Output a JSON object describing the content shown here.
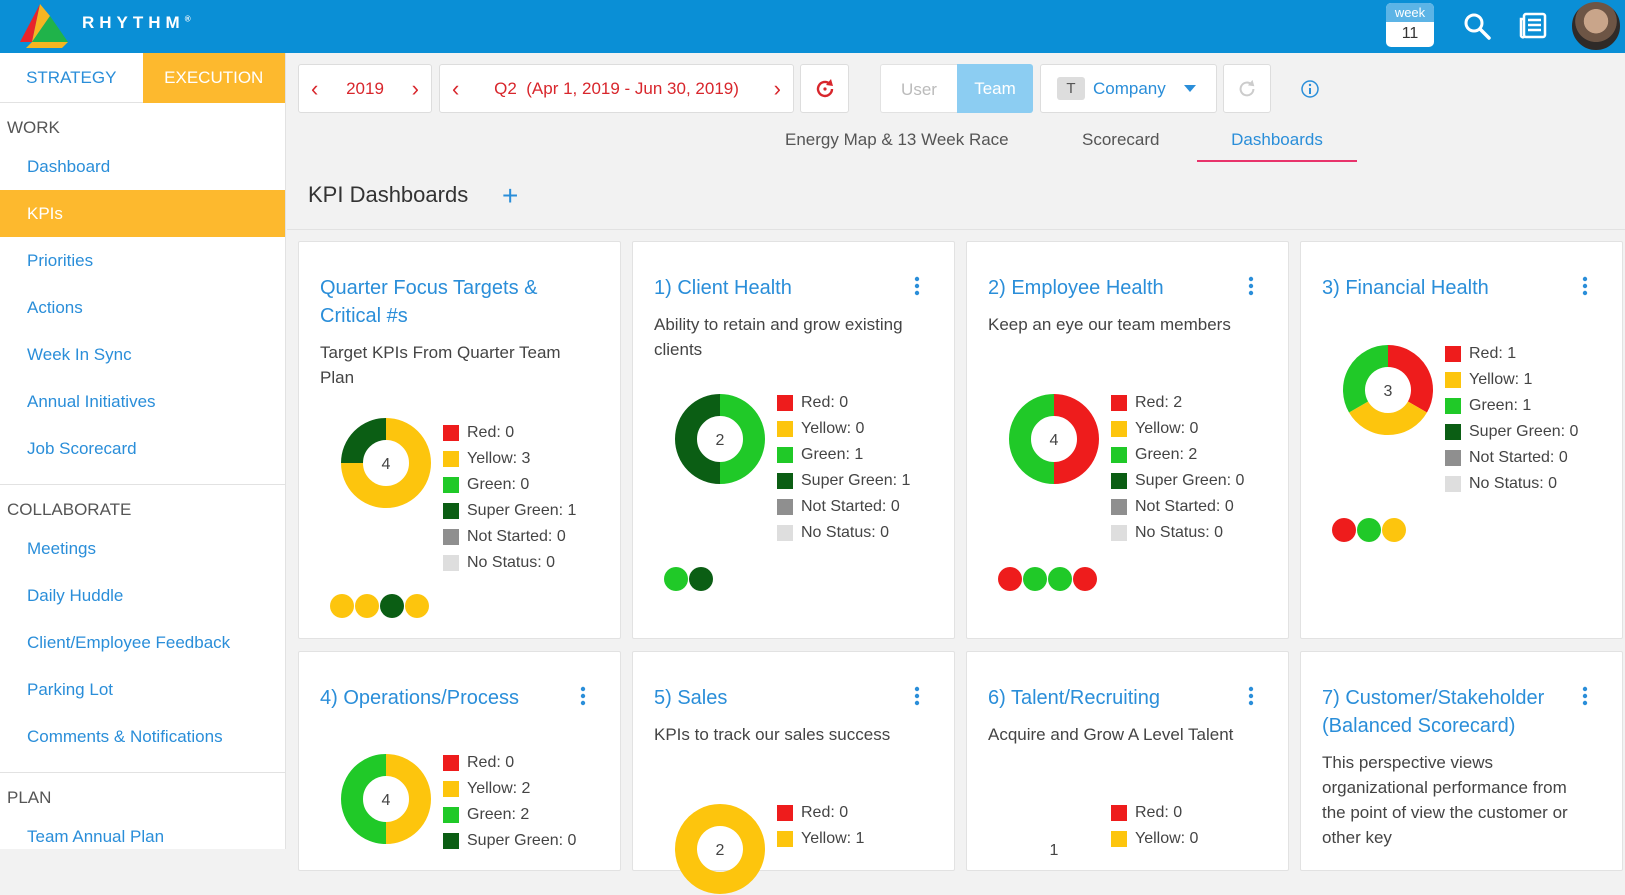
{
  "header": {
    "brand": "RHYTHM",
    "brand_mark": "®",
    "week_label": "week",
    "week_number": "11"
  },
  "sidebar": {
    "tabs": [
      "STRATEGY",
      "EXECUTION"
    ],
    "sections": [
      {
        "title": "WORK",
        "items": [
          "Dashboard",
          "KPIs",
          "Priorities",
          "Actions",
          "Week In Sync",
          "Annual Initiatives",
          "Job Scorecard"
        ]
      },
      {
        "title": "COLLABORATE",
        "items": [
          "Meetings",
          "Daily Huddle",
          "Client/Employee Feedback",
          "Parking Lot",
          "Comments & Notifications"
        ]
      },
      {
        "title": "PLAN",
        "items": [
          "Team Annual Plan"
        ]
      }
    ]
  },
  "controls": {
    "year": "2019",
    "quarter": "Q2",
    "quarter_range": "(Apr 1, 2019 - Jun 30, 2019)",
    "view_user": "User",
    "view_team": "Team",
    "company_badge": "T",
    "company": "Company"
  },
  "subtabs": [
    "Energy Map & 13 Week Race",
    "Scorecard",
    "Dashboards"
  ],
  "page": {
    "title": "KPI Dashboards",
    "add": "+"
  },
  "legend_labels": {
    "red": "Red:",
    "yellow": "Yellow:",
    "green": "Green:",
    "super_green": "Super Green:",
    "not_started": "Not Started:",
    "no_status": "No Status:"
  },
  "colors": {
    "red": "#ee1c1c",
    "yellow": "#fdc50d",
    "green": "#20c928",
    "super_green": "#0b5e14",
    "not_started": "#8f8f8f",
    "no_status": "#dedede",
    "accent": "#0a8fd6",
    "orange": "#fdb92e"
  },
  "cards": [
    {
      "title": "Quarter Focus Targets & Critical #s",
      "description": "Target KPIs From Quarter Team Plan",
      "total": "4",
      "counts": {
        "red": 0,
        "yellow": 3,
        "green": 0,
        "super_green": 1,
        "not_started": 0,
        "no_status": 0
      },
      "dots": [
        "yellow",
        "yellow",
        "super_green",
        "yellow"
      ]
    },
    {
      "title": "1) Client Health",
      "description": "Ability to retain and grow existing clients",
      "total": "2",
      "counts": {
        "red": 0,
        "yellow": 0,
        "green": 1,
        "super_green": 1,
        "not_started": 0,
        "no_status": 0
      },
      "dots": [
        "green",
        "super_green"
      ]
    },
    {
      "title": "2) Employee Health",
      "description": "Keep an eye our team members",
      "total": "4",
      "counts": {
        "red": 2,
        "yellow": 0,
        "green": 2,
        "super_green": 0,
        "not_started": 0,
        "no_status": 0
      },
      "dots": [
        "red",
        "green",
        "green",
        "red"
      ]
    },
    {
      "title": "3) Financial Health",
      "description": "",
      "total": "3",
      "counts": {
        "red": 1,
        "yellow": 1,
        "green": 1,
        "super_green": 0,
        "not_started": 0,
        "no_status": 0
      },
      "dots": [
        "red",
        "green",
        "yellow"
      ]
    },
    {
      "title": "4) Operations/Process",
      "description": "",
      "total": "4",
      "counts": {
        "red": 0,
        "yellow": 2,
        "green": 2,
        "super_green": 0
      }
    },
    {
      "title": "5) Sales",
      "description": "KPIs to track our sales success",
      "total": "2",
      "counts": {
        "red": 0,
        "yellow": 1
      }
    },
    {
      "title": "6) Talent/Recruiting",
      "description": "Acquire and Grow A Level Talent",
      "total": "1",
      "counts": {
        "red": 0,
        "yellow": 0
      }
    },
    {
      "title": "7) Customer/Stakeholder (Balanced Scorecard)",
      "description": "This perspective views organizational performance from the point of view the customer or other key"
    }
  ]
}
